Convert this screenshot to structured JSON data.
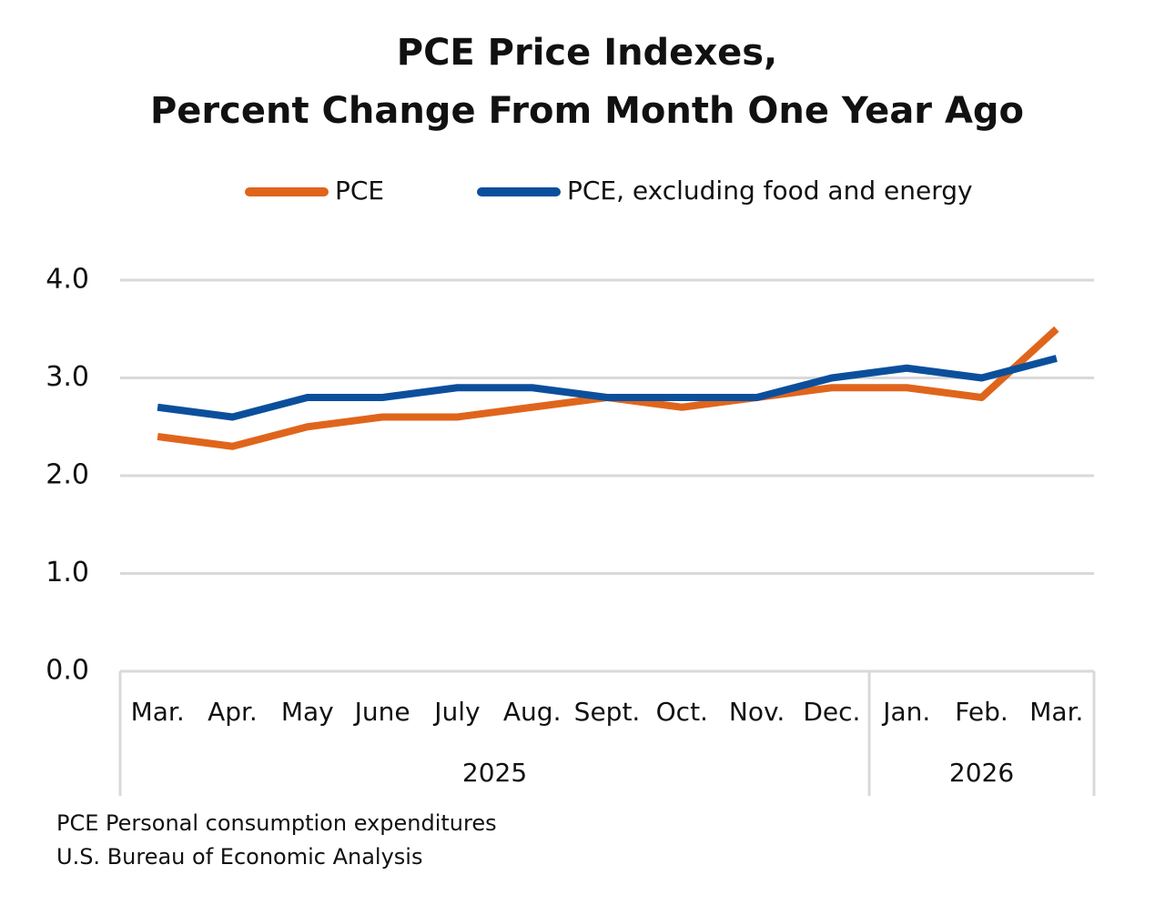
{
  "chart_data": {
    "type": "line",
    "title": [
      "PCE Price Indexes,",
      "Percent Change From Month One Year Ago"
    ],
    "groups": [
      {
        "label": "2025",
        "categories": [
          "Mar.",
          "Apr.",
          "May",
          "June",
          "July",
          "Aug.",
          "Sept.",
          "Oct.",
          "Nov.",
          "Dec."
        ]
      },
      {
        "label": "2026",
        "categories": [
          "Jan.",
          "Feb.",
          "Mar."
        ]
      }
    ],
    "series": [
      {
        "name": "PCE",
        "color": "#e0651c",
        "values": [
          2.4,
          2.3,
          2.5,
          2.6,
          2.6,
          2.7,
          2.8,
          2.7,
          2.8,
          2.9,
          2.9,
          2.8,
          3.5
        ]
      },
      {
        "name": "PCE, excluding food and energy",
        "color": "#0b4f9c",
        "values": [
          2.7,
          2.6,
          2.8,
          2.8,
          2.9,
          2.9,
          2.8,
          2.8,
          2.8,
          3.0,
          3.1,
          3.0,
          3.2
        ]
      }
    ],
    "ylim": [
      0,
      4
    ],
    "yticks": [
      {
        "value": 0,
        "label": "0.0"
      },
      {
        "value": 1,
        "label": "1.0"
      },
      {
        "value": 2,
        "label": "2.0"
      },
      {
        "value": 3,
        "label": "3.0"
      },
      {
        "value": 4,
        "label": "4.0"
      }
    ],
    "grid": true,
    "legend": "top",
    "notes": [
      "PCE Personal consumption expenditures",
      "U.S. Bureau of Economic Analysis"
    ]
  }
}
